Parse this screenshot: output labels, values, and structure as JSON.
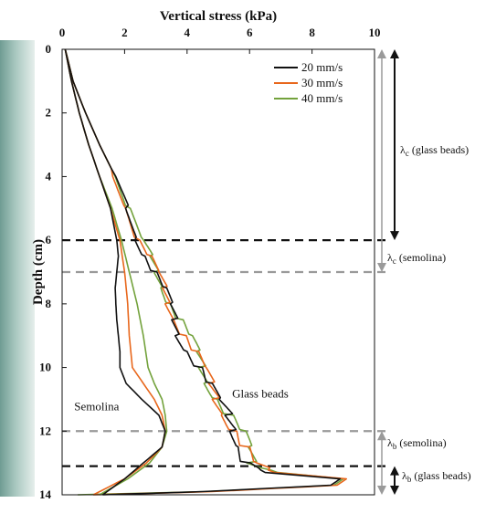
{
  "chart_data": {
    "type": "line",
    "xlabel": "Vertical stress (kPa)",
    "ylabel": "Depth (cm)",
    "xlim": [
      0,
      10
    ],
    "ylim": [
      0,
      14
    ],
    "x_ticks": [
      "0",
      "2",
      "4",
      "6",
      "8",
      "10"
    ],
    "y_ticks": [
      "0",
      "2",
      "4",
      "6",
      "8",
      "10",
      "12",
      "14"
    ],
    "x_axis_position": "top",
    "y_axis_inverted": true,
    "legend_position": "top-right",
    "colors": {
      "20 mm/s": "#111111",
      "30 mm/s": "#e8671c",
      "40 mm/s": "#73a23c"
    },
    "series": [
      {
        "name": "20 mm/s",
        "material": "Semolina",
        "points": [
          [
            0.1,
            0
          ],
          [
            0.3,
            1
          ],
          [
            0.55,
            2
          ],
          [
            0.85,
            3
          ],
          [
            1.2,
            4
          ],
          [
            1.55,
            5
          ],
          [
            1.75,
            6
          ],
          [
            1.8,
            6.5
          ],
          [
            1.75,
            7
          ],
          [
            1.7,
            7.5
          ],
          [
            1.72,
            8
          ],
          [
            1.75,
            8.5
          ],
          [
            1.8,
            9
          ],
          [
            1.85,
            9.5
          ],
          [
            1.85,
            10
          ],
          [
            2.05,
            10.5
          ],
          [
            2.55,
            11
          ],
          [
            3.1,
            11.5
          ],
          [
            3.3,
            12
          ],
          [
            3.2,
            12.5
          ],
          [
            2.6,
            13
          ],
          [
            2.0,
            13.5
          ],
          [
            1.3,
            14
          ]
        ]
      },
      {
        "name": "30 mm/s",
        "material": "Semolina",
        "points": [
          [
            0.1,
            0
          ],
          [
            0.3,
            1
          ],
          [
            0.55,
            2
          ],
          [
            0.85,
            3
          ],
          [
            1.2,
            4
          ],
          [
            1.55,
            5
          ],
          [
            1.85,
            6
          ],
          [
            2.0,
            7
          ],
          [
            2.1,
            8
          ],
          [
            2.15,
            9
          ],
          [
            2.25,
            10
          ],
          [
            2.6,
            10.5
          ],
          [
            2.95,
            11
          ],
          [
            3.2,
            11.5
          ],
          [
            3.3,
            12
          ],
          [
            3.2,
            12.5
          ],
          [
            2.7,
            13
          ],
          [
            2.0,
            13.5
          ],
          [
            1.0,
            14
          ]
        ]
      },
      {
        "name": "40 mm/s",
        "material": "Semolina",
        "points": [
          [
            0.1,
            0
          ],
          [
            0.3,
            1
          ],
          [
            0.55,
            2
          ],
          [
            0.85,
            3
          ],
          [
            1.2,
            4
          ],
          [
            1.6,
            5
          ],
          [
            1.9,
            6
          ],
          [
            2.15,
            7
          ],
          [
            2.4,
            8
          ],
          [
            2.6,
            9
          ],
          [
            2.75,
            10
          ],
          [
            2.95,
            10.5
          ],
          [
            3.2,
            11
          ],
          [
            3.3,
            11.5
          ],
          [
            3.35,
            12
          ],
          [
            3.2,
            12.5
          ],
          [
            2.8,
            13
          ],
          [
            2.1,
            13.5
          ],
          [
            1.2,
            14
          ]
        ]
      },
      {
        "name": "20 mm/s",
        "material": "Glass beads",
        "points": [
          [
            0.1,
            0
          ],
          [
            0.35,
            1
          ],
          [
            0.75,
            2
          ],
          [
            1.2,
            3
          ],
          [
            1.7,
            4
          ],
          [
            2.1,
            5
          ],
          [
            2.45,
            6
          ],
          [
            2.7,
            6.5
          ],
          [
            2.95,
            7
          ],
          [
            3.2,
            7.5
          ],
          [
            3.4,
            8
          ],
          [
            3.6,
            8.5
          ],
          [
            3.8,
            9
          ],
          [
            4.1,
            9.5
          ],
          [
            4.4,
            10
          ],
          [
            4.6,
            10.5
          ],
          [
            4.9,
            11
          ],
          [
            5.3,
            11.5
          ],
          [
            5.6,
            12
          ],
          [
            5.8,
            12.5
          ],
          [
            5.95,
            13
          ],
          [
            6.5,
            13.3
          ],
          [
            8.9,
            13.5
          ],
          [
            8.6,
            13.7
          ],
          [
            4.5,
            13.9
          ],
          [
            1.3,
            14
          ]
        ]
      },
      {
        "name": "30 mm/s",
        "material": "Glass beads",
        "points": [
          [
            0.1,
            0
          ],
          [
            0.35,
            1
          ],
          [
            0.75,
            2
          ],
          [
            1.2,
            3
          ],
          [
            1.7,
            4
          ],
          [
            2.1,
            5
          ],
          [
            2.45,
            6
          ],
          [
            2.75,
            6.5
          ],
          [
            3.0,
            7
          ],
          [
            3.25,
            7.5
          ],
          [
            3.45,
            8
          ],
          [
            3.7,
            8.5
          ],
          [
            3.95,
            9
          ],
          [
            4.2,
            9.5
          ],
          [
            4.45,
            10
          ],
          [
            4.7,
            10.5
          ],
          [
            5.0,
            11
          ],
          [
            5.3,
            11.5
          ],
          [
            5.6,
            12
          ],
          [
            5.8,
            12.5
          ],
          [
            6.0,
            13
          ],
          [
            6.8,
            13.3
          ],
          [
            9.1,
            13.5
          ],
          [
            8.8,
            13.7
          ],
          [
            4.8,
            13.9
          ],
          [
            1.0,
            14
          ]
        ]
      },
      {
        "name": "40 mm/s",
        "material": "Glass beads",
        "points": [
          [
            0.1,
            0
          ],
          [
            0.35,
            1
          ],
          [
            0.75,
            2
          ],
          [
            1.2,
            3
          ],
          [
            1.7,
            4
          ],
          [
            2.1,
            5
          ],
          [
            2.5,
            6
          ],
          [
            2.8,
            6.5
          ],
          [
            3.05,
            7
          ],
          [
            3.3,
            7.5
          ],
          [
            3.5,
            8
          ],
          [
            3.75,
            8.5
          ],
          [
            4.0,
            9
          ],
          [
            4.25,
            9.5
          ],
          [
            4.5,
            10
          ],
          [
            4.75,
            10.5
          ],
          [
            5.05,
            11
          ],
          [
            5.35,
            11.5
          ],
          [
            5.65,
            12
          ],
          [
            5.85,
            12.5
          ],
          [
            6.05,
            13
          ],
          [
            6.9,
            13.3
          ],
          [
            9.0,
            13.5
          ],
          [
            8.7,
            13.7
          ],
          [
            4.6,
            13.9
          ],
          [
            0.5,
            14
          ]
        ]
      }
    ],
    "reference_lines": [
      {
        "depth": 6,
        "color": "#111111",
        "label": "λc (glass beads)"
      },
      {
        "depth": 7,
        "color": "#9a9a9a",
        "label": "λc (semolina)"
      },
      {
        "depth": 12,
        "color": "#9a9a9a",
        "label": "λb (semolina)"
      },
      {
        "depth": 13.1,
        "color": "#111111",
        "label": "λb (glass beads)"
      }
    ],
    "zones": [
      {
        "label": "λc (glass beads)",
        "from": 0,
        "to": 6,
        "color": "#111111"
      },
      {
        "label": "λc (semolina)",
        "from": 0,
        "to": 7,
        "color": "#9a9a9a"
      },
      {
        "label": "λb (semolina)",
        "from": 12,
        "to": 14,
        "color": "#9a9a9a"
      },
      {
        "label": "λb (glass beads)",
        "from": 13.1,
        "to": 14,
        "color": "#111111"
      }
    ],
    "annotations": [
      {
        "text": "Semolina",
        "x": 1.5,
        "y": 11.2
      },
      {
        "text": "Glass beads",
        "x": 5.5,
        "y": 10.8
      }
    ]
  },
  "zone_labels": {
    "lc_glass": {
      "main": "λ",
      "sub": "c",
      "rest": " (glass beads)"
    },
    "lc_semolina": {
      "main": "λ",
      "sub": "c",
      "rest": " (semolina)"
    },
    "lb_semolina": {
      "main": "λ",
      "sub": "b",
      "rest": " (semolina)"
    },
    "lb_glass": {
      "main": "λ",
      "sub": "b",
      "rest": " (glass beads)"
    }
  }
}
